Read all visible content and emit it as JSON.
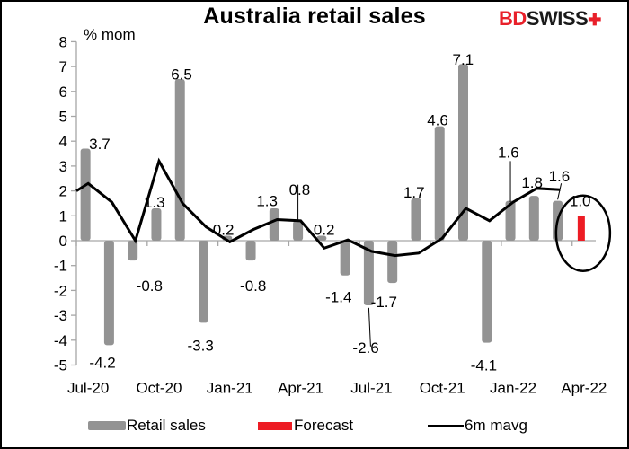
{
  "title": "Australia retail sales",
  "logo": {
    "bd": "BD",
    "swiss": "SWISS",
    "mark": "✚"
  },
  "colors": {
    "bar": "#939393",
    "forecast": "#ed1c24",
    "line": "#000000",
    "axis": "#a6a6a6"
  },
  "legend": [
    {
      "name": "Retail sales",
      "type": "bar"
    },
    {
      "name": "Forecast",
      "type": "bar"
    },
    {
      "name": "6m mavg",
      "type": "line"
    }
  ],
  "chart_data": {
    "type": "bar",
    "title": "Australia retail sales",
    "ylabel": "% mom",
    "xlabel": "",
    "ylim": [
      -5,
      8
    ],
    "yticks": [
      -5,
      -4,
      -3,
      -2,
      -1,
      0,
      1,
      2,
      3,
      4,
      5,
      6,
      7,
      8
    ],
    "categories": [
      "Jul-20",
      "Aug-20",
      "Sep-20",
      "Oct-20",
      "Nov-20",
      "Dec-20",
      "Jan-21",
      "Feb-21",
      "Mar-21",
      "Apr-21",
      "May-21",
      "Jun-21",
      "Jul-21",
      "Aug-21",
      "Sep-21",
      "Oct-21",
      "Nov-21",
      "Dec-21",
      "Jan-22",
      "Feb-22",
      "Mar-22",
      "Apr-22"
    ],
    "xtick_labels": [
      "Jul-20",
      "Oct-20",
      "Jan-21",
      "Apr-21",
      "Jul-21",
      "Oct-21",
      "Jan-22",
      "Apr-22"
    ],
    "series": [
      {
        "name": "Retail sales",
        "type": "bar",
        "values": [
          3.7,
          -4.2,
          -0.8,
          1.3,
          6.5,
          -3.3,
          0.2,
          -0.8,
          1.3,
          0.8,
          0.2,
          -1.4,
          -2.6,
          -1.7,
          1.7,
          4.6,
          7.1,
          -4.1,
          1.6,
          1.8,
          1.6,
          null
        ]
      },
      {
        "name": "Forecast",
        "type": "bar",
        "values": [
          null,
          null,
          null,
          null,
          null,
          null,
          null,
          null,
          null,
          null,
          null,
          null,
          null,
          null,
          null,
          null,
          null,
          null,
          null,
          null,
          null,
          1.0
        ]
      },
      {
        "name": "6m mavg",
        "type": "line",
        "start_value": 2.0,
        "values": [
          2.3,
          1.55,
          0.0,
          3.2,
          1.5,
          0.55,
          -0.05,
          0.45,
          0.85,
          0.8,
          -0.3,
          0.03,
          -0.43,
          -0.6,
          -0.5,
          0.1,
          1.3,
          0.8,
          1.55,
          2.1,
          2.05,
          null
        ]
      }
    ],
    "data_labels": [
      {
        "index": 0,
        "text": "3.7",
        "dx": 4,
        "y": 3.9
      },
      {
        "index": 1,
        "text": "-4.2",
        "dx": -22,
        "y": -4.9
      },
      {
        "index": 2,
        "text": "-0.8",
        "dx": 4,
        "y": -1.8
      },
      {
        "index": 3,
        "text": "1.3",
        "dx": -14,
        "y": 1.55
      },
      {
        "index": 4,
        "text": "6.5",
        "dx": -10,
        "y": 6.7
      },
      {
        "index": 5,
        "text": "-3.3",
        "dx": -18,
        "y": -4.2
      },
      {
        "index": 6,
        "text": "0.2",
        "dx": -16,
        "y": 0.45
      },
      {
        "index": 7,
        "text": "-0.8",
        "dx": -12,
        "y": -1.8
      },
      {
        "index": 8,
        "text": "1.3",
        "dx": -20,
        "y": 1.6
      },
      {
        "index": 9,
        "text": "0.8",
        "dx": -10,
        "y": 2.05
      },
      {
        "index": 10,
        "text": "0.2",
        "dx": -9,
        "y": 0.45
      },
      {
        "index": 11,
        "text": "-1.4",
        "dx": -22,
        "y": -2.25
      },
      {
        "index": 12,
        "text": "-2.6",
        "dx": -18,
        "y": -4.3
      },
      {
        "index": 13,
        "text": "-1.7",
        "dx": -24,
        "y": -2.45
      },
      {
        "index": 14,
        "text": "1.7",
        "dx": -14,
        "y": 1.95
      },
      {
        "index": 15,
        "text": "4.6",
        "dx": -14,
        "y": 4.85
      },
      {
        "index": 16,
        "text": "7.1",
        "dx": -12,
        "y": 7.3
      },
      {
        "index": 17,
        "text": "-4.1",
        "dx": -18,
        "y": -5.0
      },
      {
        "index": 18,
        "text": "1.6",
        "dx": -14,
        "y": 3.55
      },
      {
        "index": 19,
        "text": "1.8",
        "dx": -14,
        "y": 2.35
      },
      {
        "index": 20,
        "text": "1.6",
        "dx": -10,
        "y": 2.6
      },
      {
        "index": 21,
        "text": "1.0",
        "dx": -13,
        "y": 1.6
      }
    ],
    "leader_lines": [
      {
        "index": 9,
        "from_y": 2.25,
        "to_y": 0.85,
        "dx1": 0,
        "dx2": 0
      },
      {
        "index": 12,
        "from_y": -2.7,
        "to_y": -4.25,
        "dx1": 0,
        "dx2": 2
      },
      {
        "index": 18,
        "from_y": 3.2,
        "to_y": 1.55,
        "dx1": 0,
        "dx2": 0
      },
      {
        "index": 20,
        "from_y": 2.3,
        "to_y": 1.65,
        "dx1": 4,
        "dx2": 0
      }
    ],
    "annotations": [
      {
        "type": "ellipse",
        "around_index": 21,
        "label": "forecast highlight"
      }
    ],
    "grid": false,
    "legend_position": "bottom"
  }
}
